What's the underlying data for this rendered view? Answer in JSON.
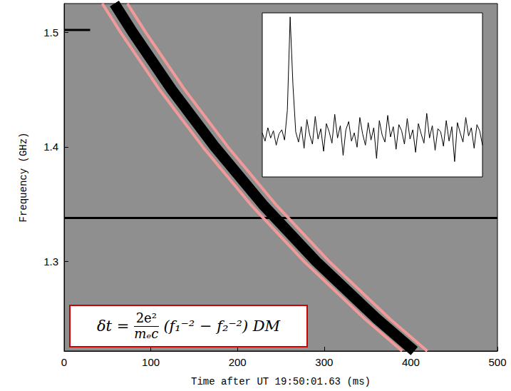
{
  "chart_data": [
    {
      "type": "line",
      "xlabel": "Time after UT 19:50:01.63 (ms)",
      "ylabel": "Frequency (GHz)",
      "xlim": [
        0,
        500
      ],
      "xticks": [
        0,
        100,
        200,
        300,
        400,
        500
      ],
      "ylim": [
        1.222,
        1.525
      ],
      "yticks": [
        1.3,
        1.4,
        1.5
      ],
      "series": [
        {
          "color": "#000000",
          "line_style": "band",
          "x": [
            58,
            79,
            124,
            174,
            229,
            291,
            361,
            404
          ],
          "values": [
            1.525,
            1.5,
            1.45,
            1.4,
            1.35,
            1.3,
            1.25,
            1.222
          ]
        },
        {
          "color": "#f29a9a",
          "line_style": "solid",
          "x": [
            44,
            65,
            110,
            160,
            215,
            277,
            347,
            390
          ],
          "values": [
            1.525,
            1.5,
            1.45,
            1.4,
            1.35,
            1.3,
            1.25,
            1.222
          ]
        },
        {
          "color": "#f29a9a",
          "line_style": "solid",
          "x": [
            73,
            94,
            139,
            189,
            244,
            306,
            376,
            419
          ],
          "values": [
            1.525,
            1.5,
            1.45,
            1.4,
            1.35,
            1.3,
            1.25,
            1.222
          ]
        },
        {
          "color": "#000000",
          "line_style": "thin",
          "x": [
            0,
            500
          ],
          "values": [
            1.338,
            1.338
          ]
        },
        {
          "color": "#000000",
          "line_style": "thin",
          "x": [
            0,
            30
          ],
          "values": [
            1.502,
            1.502
          ]
        }
      ],
      "annotations": [
        {
          "formula": {
            "lhs": "δt =",
            "numerator": "2e²",
            "denominator": "mₑc",
            "rest": "(f₁⁻² − f₂⁻²) DM"
          }
        }
      ]
    },
    {
      "type": "line",
      "color": "#000000",
      "tick_labels": false,
      "ylim": [
        -4,
        12
      ],
      "values": [
        0.3,
        -0.5,
        0.8,
        -0.2,
        0.5,
        -0.9,
        0.2,
        0.6,
        -0.4,
        2.5,
        11.6,
        5.0,
        0.4,
        -0.6,
        0.9,
        -1.2,
        1.6,
        0.1,
        -0.8,
        1.9,
        -0.3,
        0.7,
        -1.5,
        1.2,
        0.4,
        -0.7,
        2.1,
        -0.2,
        1.0,
        -1.9,
        0.6,
        1.4,
        -0.5,
        0.3,
        -1.1,
        1.8,
        0.2,
        -0.9,
        1.3,
        -0.4,
        0.8,
        -2.2,
        1.5,
        0.1,
        -0.6,
        2.0,
        -0.1,
        0.9,
        -1.3,
        1.1,
        0.5,
        -0.8,
        1.7,
        -0.3,
        0.6,
        -1.6,
        1.2,
        0.2,
        -0.7,
        2.2,
        -0.2,
        1.0,
        -1.4,
        0.7,
        0.4,
        -1.0,
        1.5,
        -0.5,
        0.9,
        -2.5,
        1.3,
        0.3,
        -0.6,
        1.8,
        0.0,
        0.8,
        -1.2,
        1.1,
        0.5,
        -0.9
      ]
    }
  ]
}
